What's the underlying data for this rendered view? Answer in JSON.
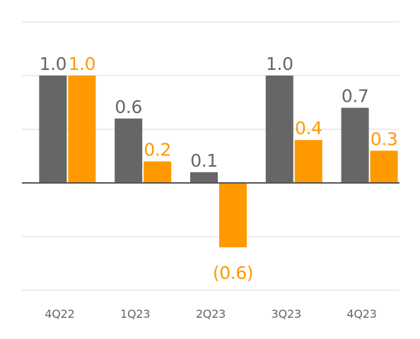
{
  "chart_data": {
    "type": "bar",
    "categories": [
      "4Q22",
      "1Q23",
      "2Q23",
      "3Q23",
      "4Q23"
    ],
    "series": [
      {
        "values": [
          1.0,
          0.6,
          0.1,
          1.0,
          0.7
        ],
        "labels": [
          "1.0",
          "0.6",
          "0.1",
          "1.0",
          "0.7"
        ],
        "color": "#666666"
      },
      {
        "values": [
          1.0,
          0.2,
          -0.6,
          0.4,
          0.3
        ],
        "labels": [
          "1.0",
          "0.2",
          "(0.6)",
          "0.4",
          "0.3"
        ],
        "color": "#ff9900"
      }
    ],
    "ylim": [
      -1.0,
      1.5
    ],
    "grid": true,
    "legend": "none",
    "colors": {
      "grid": "#e6e6e6",
      "baseline": "#555555",
      "tick_label": "#666666"
    }
  }
}
